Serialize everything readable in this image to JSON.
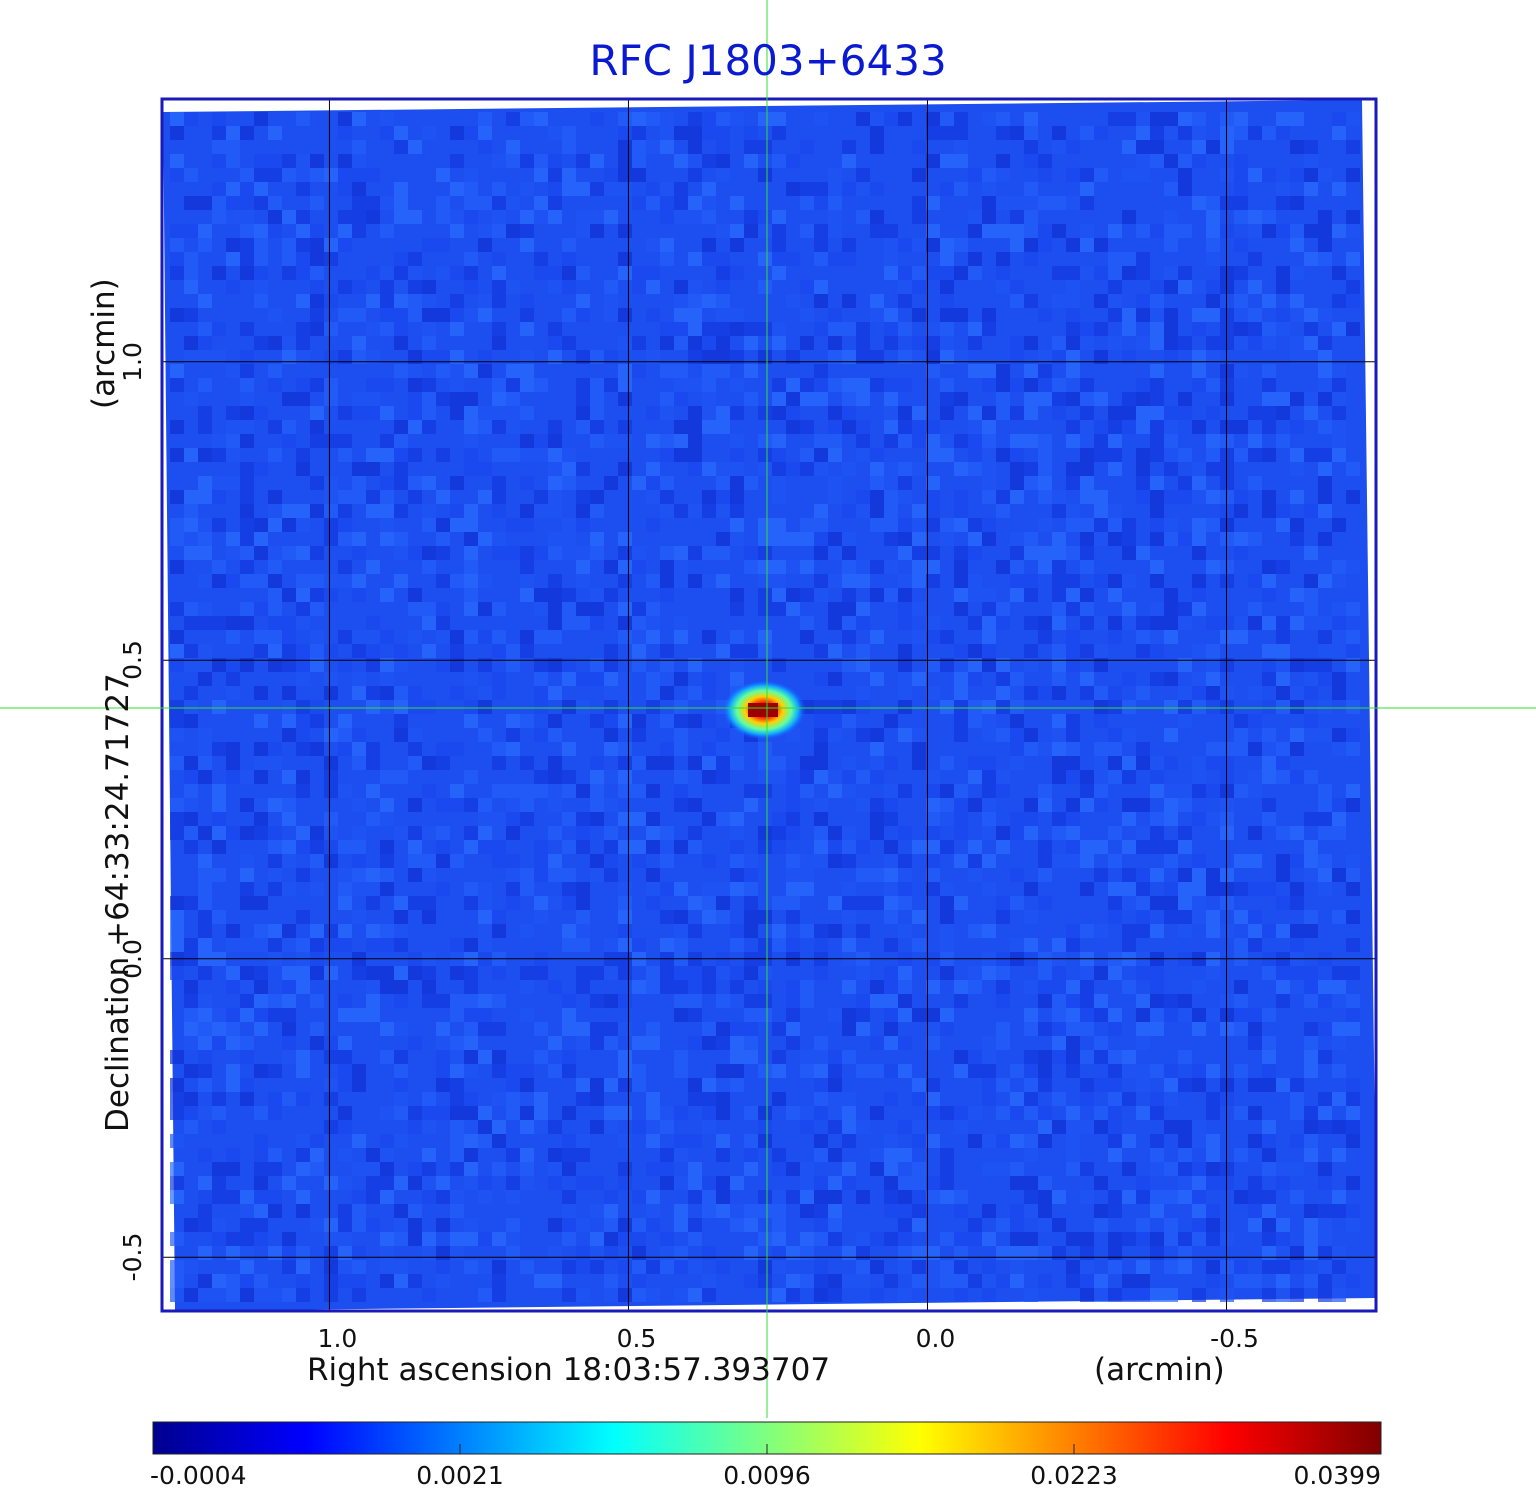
{
  "chart_data": {
    "type": "heatmap",
    "title": "RFC J1803+6433",
    "xlabel": "Right ascension  18:03:57.393707",
    "xunit": "(arcmin)",
    "ylabel": "Declination  +64:33:24.71727",
    "yunit": "(arcmin)",
    "x_ticks": [
      1.0,
      0.5,
      0.0,
      -0.5
    ],
    "x_tick_labels": [
      "1.0",
      "0.5",
      "0.0",
      "-0.5"
    ],
    "y_ticks": [
      1.0,
      0.5,
      0.0,
      -0.5
    ],
    "y_tick_labels": [
      "1.0",
      "0.5",
      "0.0",
      "-0.5"
    ],
    "xlim": [
      1.28,
      -0.75
    ],
    "ylim": [
      -0.59,
      1.44
    ],
    "grid": true,
    "source_peak": {
      "x": 0.275,
      "y": 0.415
    },
    "crosshair": {
      "x": 0.27,
      "y": 0.415,
      "color": "#33dd33"
    },
    "colorbar": {
      "colormap": "jet",
      "ticks": [
        -0.0004,
        0.0021,
        0.0096,
        0.0223,
        0.0399
      ],
      "tick_labels": [
        "-0.0004",
        "0.0021",
        "0.0096",
        "0.0223",
        "0.0399"
      ]
    },
    "colors": {
      "frame": "#1a1ab8",
      "title": "#0a1ad0",
      "grid": "#000000"
    }
  }
}
